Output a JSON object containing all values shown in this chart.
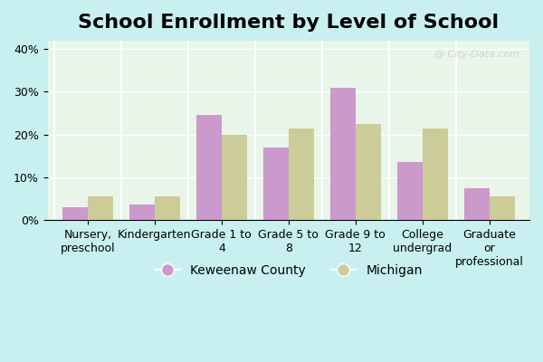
{
  "title": "School Enrollment by Level of School",
  "categories": [
    "Nursery,\npreschool",
    "Kindergarten",
    "Grade 1 to\n4",
    "Grade 5 to\n8",
    "Grade 9 to\n12",
    "College\nundergrad",
    "Graduate\nor\nprofessional"
  ],
  "keweenaw": [
    3.0,
    3.5,
    24.5,
    17.0,
    31.0,
    13.5,
    7.5
  ],
  "michigan": [
    5.5,
    5.5,
    20.0,
    21.5,
    22.5,
    21.5,
    5.5
  ],
  "keweenaw_color": "#cc99cc",
  "michigan_color": "#cccc99",
  "ylabel_ticks": [
    "0%",
    "10%",
    "20%",
    "30%",
    "40%"
  ],
  "ytick_vals": [
    0,
    10,
    20,
    30,
    40
  ],
  "ylim": [
    0,
    42
  ],
  "bar_width": 0.38,
  "background_color": "#e8f5e8",
  "legend_keweenaw": "Keweenaw County",
  "legend_michigan": "Michigan",
  "title_fontsize": 16,
  "axis_fontsize": 9,
  "legend_fontsize": 10
}
